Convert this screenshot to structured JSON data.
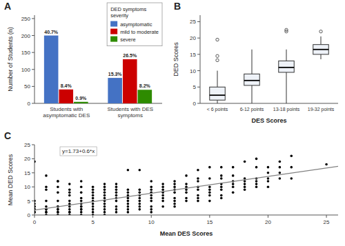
{
  "chart_data": [
    {
      "type": "bar",
      "title": "A",
      "categories": [
        "Students with\nasymptomatic DES",
        "Students with DES\nsymptoms"
      ],
      "series": [
        {
          "name": "asymptomatic",
          "color": "#4472C4",
          "values": [
            200,
            75
          ],
          "annotations": [
            "40.7%",
            "15.3%"
          ]
        },
        {
          "name": "mild to moderate",
          "color": "#CC0000",
          "values": [
            41,
            130
          ],
          "annotations": [
            "8.4%",
            "26.5%"
          ]
        },
        {
          "name": "severe",
          "color": "#2E8B00",
          "values": [
            4.5,
            40
          ],
          "annotations": [
            "0.9%",
            "8.2%"
          ]
        }
      ],
      "ylabel": "Number of Students (n)",
      "legend": "upper right",
      "legend_title": "DED symptoms\nseverity",
      "ylim": [
        0,
        260
      ],
      "yticks": [
        0,
        50,
        100,
        150,
        200,
        250
      ]
    },
    {
      "type": "box",
      "title": "B",
      "categories": [
        "< 6 points",
        "6-12 points",
        "13-18 points",
        "19-32 points"
      ],
      "medians": [
        2.5,
        7.0,
        11.0,
        16.5
      ],
      "q1": [
        1.0,
        5.5,
        9.5,
        15.0
      ],
      "q3": [
        5.0,
        9.0,
        13.0,
        18.0
      ],
      "whisker_low": [
        0.0,
        0.0,
        0.0,
        13.5
      ],
      "whisker_high": [
        10.0,
        16.5,
        16.5,
        20.5
      ],
      "outliers": [
        [
          19.5,
          14.5,
          13.2
        ],
        [],
        [
          22.5,
          22.0
        ],
        [
          22.0
        ]
      ],
      "xlabel": "DES Scores",
      "ylabel": "DED Scores",
      "ylim": [
        0,
        27
      ],
      "yticks": [
        0,
        5,
        10,
        15,
        20,
        25
      ]
    },
    {
      "type": "scatter",
      "title": "C",
      "series": [
        {
          "type": "scatter",
          "color": "black",
          "x": [
            0,
            0,
            0,
            0,
            0,
            0,
            0,
            0,
            0,
            1,
            1,
            1,
            1,
            1,
            1,
            1,
            1,
            1,
            1,
            2,
            2,
            2,
            2,
            2,
            2,
            2,
            2,
            2,
            2,
            2,
            2,
            3,
            3,
            3,
            3,
            3,
            3,
            3,
            3,
            3,
            3,
            3,
            4,
            4,
            4,
            4,
            4,
            4,
            4,
            4,
            4,
            4,
            4,
            4,
            5,
            5,
            5,
            5,
            5,
            5,
            5,
            5,
            5,
            5,
            5,
            6,
            6,
            6,
            6,
            6,
            6,
            6,
            6,
            6,
            6,
            6,
            6,
            7,
            7,
            7,
            7,
            7,
            7,
            7,
            7,
            7,
            7,
            8,
            8,
            8,
            8,
            8,
            8,
            8,
            8,
            8,
            8,
            9,
            9,
            9,
            9,
            9,
            9,
            9,
            9,
            9,
            10,
            10,
            10,
            10,
            10,
            10,
            10,
            10,
            10,
            10,
            11,
            11,
            11,
            11,
            11,
            11,
            11,
            11,
            12,
            12,
            12,
            12,
            12,
            12,
            12,
            12,
            12,
            13,
            13,
            13,
            13,
            13,
            13,
            13,
            14,
            14,
            14,
            14,
            14,
            14,
            14,
            14,
            15,
            15,
            15,
            15,
            15,
            15,
            15,
            16,
            16,
            16,
            16,
            16,
            16,
            16,
            16,
            17,
            17,
            17,
            17,
            17,
            17,
            18,
            18,
            18,
            18,
            18,
            18,
            19,
            19,
            19,
            19,
            19,
            19,
            20,
            20,
            20,
            20,
            20,
            21,
            21,
            21,
            21,
            22,
            22,
            22,
            25
          ],
          "values": [
            1,
            1,
            2,
            2,
            3,
            3,
            4,
            5,
            19,
            0,
            1,
            1,
            2,
            2,
            3,
            5,
            9,
            10,
            14,
            0,
            1,
            1,
            2,
            2,
            3,
            3,
            5,
            8,
            10,
            12,
            12,
            0,
            1,
            1,
            2,
            3,
            4,
            5,
            7,
            8,
            9,
            11,
            0,
            1,
            2,
            2,
            3,
            3,
            4,
            5,
            6,
            8,
            10,
            12,
            0,
            1,
            2,
            3,
            4,
            5,
            6,
            7,
            8,
            9,
            10,
            0,
            1,
            2,
            3,
            4,
            5,
            6,
            7,
            8,
            9,
            10,
            11,
            1,
            2,
            3,
            5,
            6,
            7,
            8,
            9,
            10,
            11,
            1,
            2,
            3,
            4,
            5,
            6,
            7,
            8,
            9,
            16,
            2,
            3,
            4,
            5,
            6,
            7,
            8,
            9,
            16,
            1,
            2,
            3,
            5,
            6,
            7,
            8,
            9,
            10,
            12,
            3,
            5,
            6,
            7,
            8,
            9,
            10,
            11,
            3,
            4,
            5,
            6,
            8,
            9,
            10,
            11,
            12,
            5,
            6,
            8,
            9,
            10,
            11,
            14,
            5,
            6,
            7,
            9,
            10,
            12,
            13,
            16,
            5,
            7,
            8,
            9,
            10,
            13,
            17,
            6,
            7,
            9,
            10,
            11,
            13,
            14,
            17,
            8,
            10,
            11,
            12,
            14,
            17,
            9,
            10,
            11,
            12,
            13,
            19,
            10,
            11,
            12,
            13,
            17,
            20,
            10,
            12,
            13,
            15,
            17,
            13,
            15,
            17,
            19,
            13,
            17,
            21,
            18
          ]
        },
        {
          "type": "line",
          "color": "gray",
          "x": [
            0,
            26
          ],
          "values": [
            1.73,
            17.33
          ]
        }
      ],
      "annotations": [
        "y=1.73+0.6*x"
      ],
      "xlabel": "Mean DES Scores",
      "ylabel": "Mean DED Scores",
      "xlim": [
        0,
        26
      ],
      "xticks": [
        0,
        5,
        10,
        15,
        20,
        25
      ],
      "ylim": [
        0,
        25
      ],
      "yticks": [
        0,
        5,
        10,
        15,
        20,
        25
      ]
    }
  ]
}
